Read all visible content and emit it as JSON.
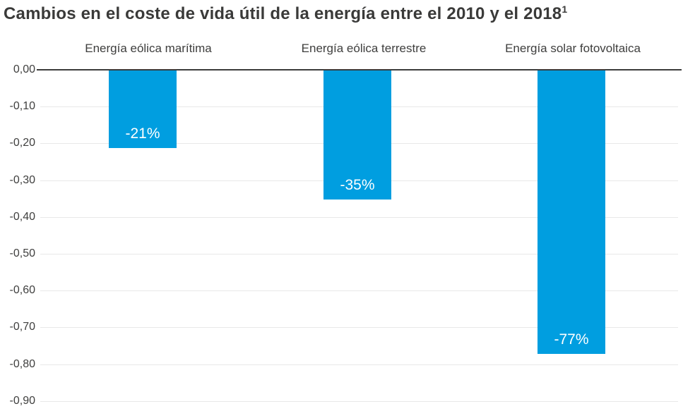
{
  "title": "Cambios en el coste de vida útil de la energía entre el 2010 y el 2018",
  "title_superscript": "1",
  "chart_data": {
    "type": "bar",
    "title": "Cambios en el coste de vida útil de la energía entre el 2010 y el 2018¹",
    "categories": [
      "Energía eólica marítima",
      "Energía eólica terrestre",
      "Energía solar fotovoltaica"
    ],
    "values": [
      -0.21,
      -0.35,
      -0.77
    ],
    "bar_labels": [
      "-21%",
      "-35%",
      "-77%"
    ],
    "xlabel": "",
    "ylabel": "",
    "ylim": [
      -0.9,
      0.0
    ],
    "yticks": [
      0.0,
      -0.1,
      -0.2,
      -0.3,
      -0.4,
      -0.5,
      -0.6,
      -0.7,
      -0.8,
      -0.9
    ],
    "ytick_labels": [
      "0,00",
      "-0,10",
      "-0,20",
      "-0,30",
      "-0,40",
      "-0,50",
      "-0,60",
      "-0,70",
      "-0,80",
      "-0,90"
    ],
    "grid": true,
    "legend_position": "none",
    "bar_color": "#009EE0",
    "bar_label_color": "#FFFFFF",
    "zero_axis_color": "#3C3C3B",
    "gridline_color": "#E8E8E8",
    "text_color": "#3A3A39"
  }
}
